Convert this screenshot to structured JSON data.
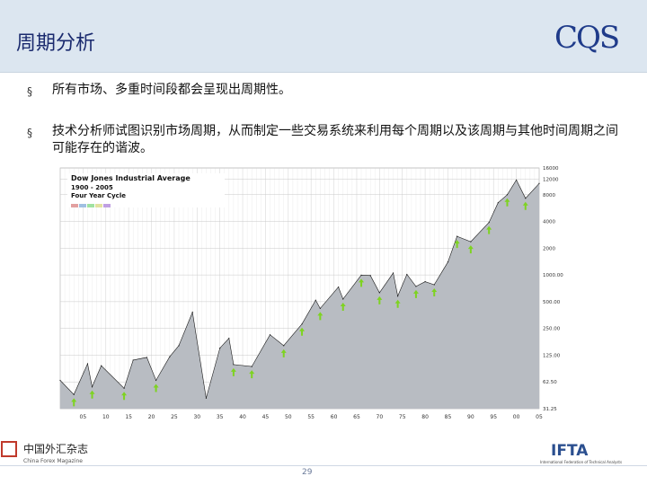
{
  "slide": {
    "title": "周期分析",
    "logo_text": "CQS",
    "bullets": [
      "所有市场、多重时间段都会呈现出周期性。",
      "技术分析师试图识别市场周期，从而制定一些交易系统来利用每个周期以及该周期与其他时间周期之间可能存在的谐波。"
    ],
    "bullet_marker": "§",
    "page_number": "29"
  },
  "footer": {
    "left_logo_text": "中国外汇杂志",
    "left_logo_sub": "China Forex Magazine",
    "right_logo_text": "IFTA",
    "right_logo_sub": "International Federation of Technical Analysts"
  },
  "chart_data": {
    "type": "line",
    "title": "Dow Jones Industrial Average",
    "subtitle_lines": [
      "1900 - 2005",
      "Four Year Cycle"
    ],
    "x_ticks": [
      "05",
      "10",
      "15",
      "20",
      "25",
      "30",
      "35",
      "40",
      "45",
      "50",
      "55",
      "60",
      "65",
      "70",
      "75",
      "80",
      "85",
      "90",
      "95",
      "00",
      "05"
    ],
    "y_ticks": [
      "16000",
      "12000",
      "8000",
      "4000",
      "2000",
      "1000.00",
      "500.00",
      "250.00",
      "125.00",
      "62.50",
      "31.25"
    ],
    "log_scale": true,
    "x": [
      1900,
      1903,
      1906,
      1907,
      1909,
      1914,
      1916,
      1919,
      1921,
      1924,
      1926,
      1929,
      1932,
      1935,
      1937,
      1938,
      1942,
      1946,
      1949,
      1953,
      1956,
      1957,
      1961,
      1962,
      1966,
      1968,
      1970,
      1973,
      1974,
      1976,
      1978,
      1980,
      1982,
      1985,
      1987,
      1990,
      1994,
      1996,
      1998,
      2000,
      2002,
      2005
    ],
    "y": [
      65,
      45,
      100,
      55,
      95,
      53,
      110,
      118,
      65,
      120,
      160,
      381,
      41,
      150,
      194,
      98,
      93,
      212,
      160,
      280,
      520,
      420,
      730,
      535,
      995,
      985,
      631,
      1052,
      577,
      1015,
      742,
      840,
      776,
      1400,
      2722,
      2365,
      3900,
      6500,
      8000,
      11700,
      7286,
      10700
    ],
    "legend_swatches": [
      "#e2a0a0",
      "#a0c0e2",
      "#a0e2a0",
      "#e2e2a0",
      "#c0a0e2"
    ],
    "colors": {
      "line": "#1a1a1a",
      "area": "#b8bcc2",
      "arrow": "#7ed321",
      "plot_bg": "#ffffff",
      "grid": "#d8d8d8"
    }
  }
}
